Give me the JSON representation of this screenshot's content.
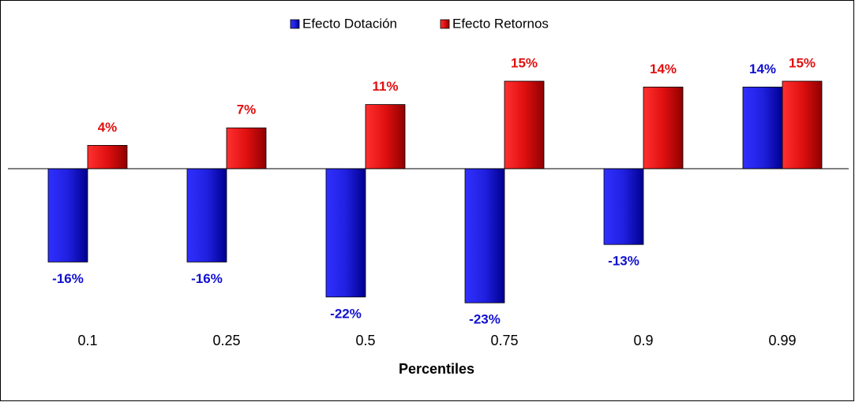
{
  "chart_data": {
    "type": "bar",
    "x_label": "Percentiles",
    "categories": [
      "0.1",
      "0.25",
      "0.5",
      "0.75",
      "0.9",
      "0.99"
    ],
    "series": [
      {
        "name": "Efecto Dotación",
        "color": "#1010d0",
        "values": [
          -16,
          -16,
          -22,
          -23,
          -13,
          14
        ],
        "value_labels": [
          "-16%",
          "-16%",
          "-22%",
          "-23%",
          "-13%",
          "14%"
        ]
      },
      {
        "name": "Efecto Retornos",
        "color": "#e01010",
        "values": [
          4,
          7,
          11,
          15,
          14,
          15
        ],
        "value_labels": [
          "4%",
          "7%",
          "11%",
          "15%",
          "14%",
          "15%"
        ]
      }
    ],
    "ylim": [
      -25,
      20
    ],
    "legend": "top"
  }
}
